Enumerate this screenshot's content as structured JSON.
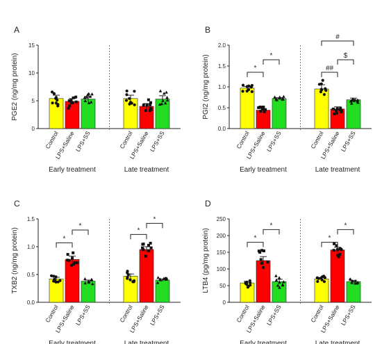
{
  "chart_data": [
    {
      "panel": "A",
      "type": "bar",
      "ylabel": "PGE2 (ng/mg protein)",
      "ylim": [
        0,
        15
      ],
      "yticks": [
        0,
        5,
        10,
        15
      ],
      "colors": [
        "#ffff00",
        "#ff0000",
        "#22dd22"
      ],
      "groups": [
        {
          "label": "Early treatment",
          "categories": [
            "Control",
            "LPS+Saline",
            "LPS+SS"
          ],
          "values": [
            5.4,
            4.9,
            5.3
          ],
          "errors": [
            0.6,
            0.5,
            0.5
          ]
        },
        {
          "label": "Late treatment",
          "categories": [
            "Control",
            "LPS+Saline",
            "LPS+SS"
          ],
          "values": [
            5.4,
            4.0,
            5.3
          ],
          "errors": [
            0.6,
            0.5,
            0.6
          ]
        }
      ],
      "brackets": []
    },
    {
      "panel": "B",
      "type": "bar",
      "ylabel": "PGI2 (ng/mg protein)",
      "ylim": [
        0,
        2.0
      ],
      "yticks": [
        0.0,
        0.5,
        1.0,
        1.5,
        2.0
      ],
      "colors": [
        "#ffff00",
        "#ff0000",
        "#22dd22"
      ],
      "groups": [
        {
          "label": "Early treatment",
          "categories": [
            "Control",
            "LPS+Saline",
            "LPS+SS"
          ],
          "values": [
            0.97,
            0.44,
            0.72
          ],
          "errors": [
            0.04,
            0.03,
            0.02
          ]
        },
        {
          "label": "Late treatment",
          "categories": [
            "Control",
            "LPS+Saline",
            "LPS+SS"
          ],
          "values": [
            0.95,
            0.47,
            0.69
          ],
          "errors": [
            0.1,
            0.05,
            0.04
          ]
        }
      ],
      "brackets": [
        {
          "group": 0,
          "from": 0,
          "to": 1,
          "y": 1.35,
          "label": "*"
        },
        {
          "group": 0,
          "from": 1,
          "to": 2,
          "y": 1.65,
          "label": "*"
        },
        {
          "group": 1,
          "from": 0,
          "to": 1,
          "y": 1.35,
          "label": "##"
        },
        {
          "group": 1,
          "from": 1,
          "to": 2,
          "y": 1.65,
          "label": "$"
        },
        {
          "group": 1,
          "from": 0,
          "to": 2,
          "y": 2.1,
          "label": "#"
        }
      ]
    },
    {
      "panel": "C",
      "type": "bar",
      "ylabel": "TXB2 (ng/mg protein)",
      "ylim": [
        0,
        1.5
      ],
      "yticks": [
        0.0,
        0.5,
        1.0,
        1.5
      ],
      "colors": [
        "#ffff00",
        "#ff0000",
        "#22dd22"
      ],
      "groups": [
        {
          "label": "Early treatment",
          "categories": [
            "Control",
            "LPS+Saline",
            "LPS+SS"
          ],
          "values": [
            0.42,
            0.77,
            0.38
          ],
          "errors": [
            0.03,
            0.06,
            0.02
          ]
        },
        {
          "label": "Late treatment",
          "categories": [
            "Control",
            "LPS+Saline",
            "LPS+SS"
          ],
          "values": [
            0.47,
            0.95,
            0.4
          ],
          "errors": [
            0.04,
            0.05,
            0.02
          ]
        }
      ],
      "brackets": [
        {
          "group": 0,
          "from": 0,
          "to": 1,
          "y": 1.07,
          "label": "*"
        },
        {
          "group": 0,
          "from": 1,
          "to": 2,
          "y": 1.3,
          "label": "*"
        },
        {
          "group": 1,
          "from": 0,
          "to": 1,
          "y": 1.22,
          "label": "*"
        },
        {
          "group": 1,
          "from": 1,
          "to": 2,
          "y": 1.42,
          "label": "*"
        }
      ]
    },
    {
      "panel": "D",
      "type": "bar",
      "ylabel": "LTB4 (pg/mg protein)",
      "ylim": [
        0,
        250
      ],
      "yticks": [
        0,
        50,
        100,
        150,
        200,
        250
      ],
      "colors": [
        "#ffff00",
        "#ff0000",
        "#22dd22"
      ],
      "groups": [
        {
          "label": "Early treatment",
          "categories": [
            "Control",
            "LPS+Saline",
            "LPS+SS"
          ],
          "values": [
            58,
            125,
            62
          ],
          "errors": [
            5,
            12,
            7
          ]
        },
        {
          "label": "Late treatment",
          "categories": [
            "Control",
            "LPS+Saline",
            "LPS+SS"
          ],
          "values": [
            70,
            157,
            62
          ],
          "errors": [
            4,
            8,
            4
          ]
        }
      ],
      "brackets": [
        {
          "group": 0,
          "from": 0,
          "to": 1,
          "y": 180,
          "label": "*"
        },
        {
          "group": 0,
          "from": 1,
          "to": 2,
          "y": 218,
          "label": "*"
        },
        {
          "group": 1,
          "from": 0,
          "to": 1,
          "y": 180,
          "label": "*"
        },
        {
          "group": 1,
          "from": 1,
          "to": 2,
          "y": 218,
          "label": "*"
        }
      ]
    }
  ]
}
